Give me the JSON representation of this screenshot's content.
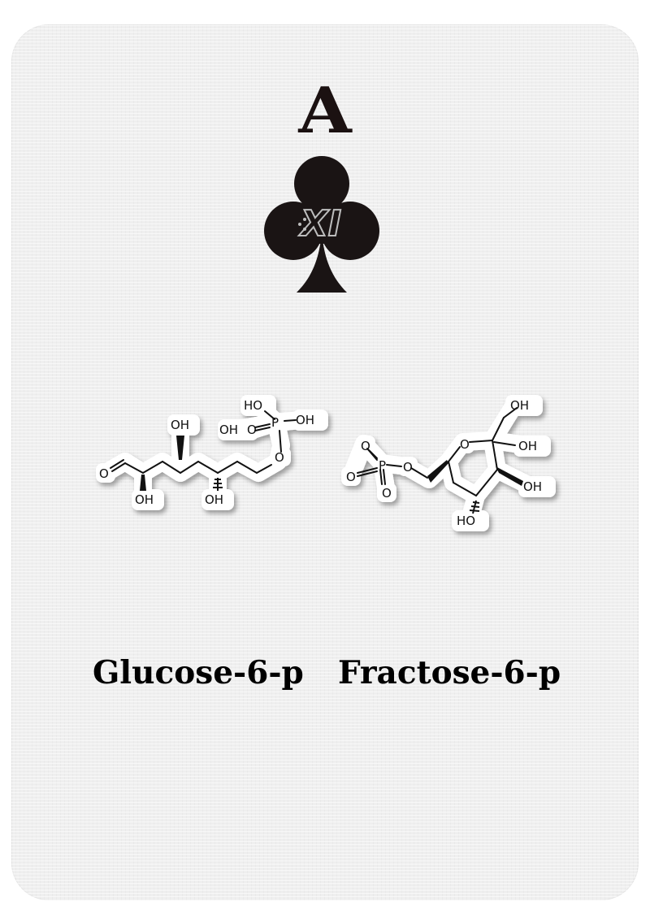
{
  "card": {
    "rank": "A",
    "suit_icon": "club-icon",
    "emblem_text": "XI"
  },
  "molecules": {
    "glucose": {
      "name": "Glucose-6-p",
      "labels": [
        "O",
        "OH",
        "OH",
        "OH",
        "OH",
        "O",
        "HO",
        "OH",
        "OH",
        "O",
        "P"
      ]
    },
    "fructose": {
      "name": "Fractose-6-p",
      "labels": [
        "O",
        "P",
        "O",
        "O",
        "O",
        "O",
        "OH",
        "OH",
        "OH",
        "HO",
        "O"
      ]
    }
  }
}
